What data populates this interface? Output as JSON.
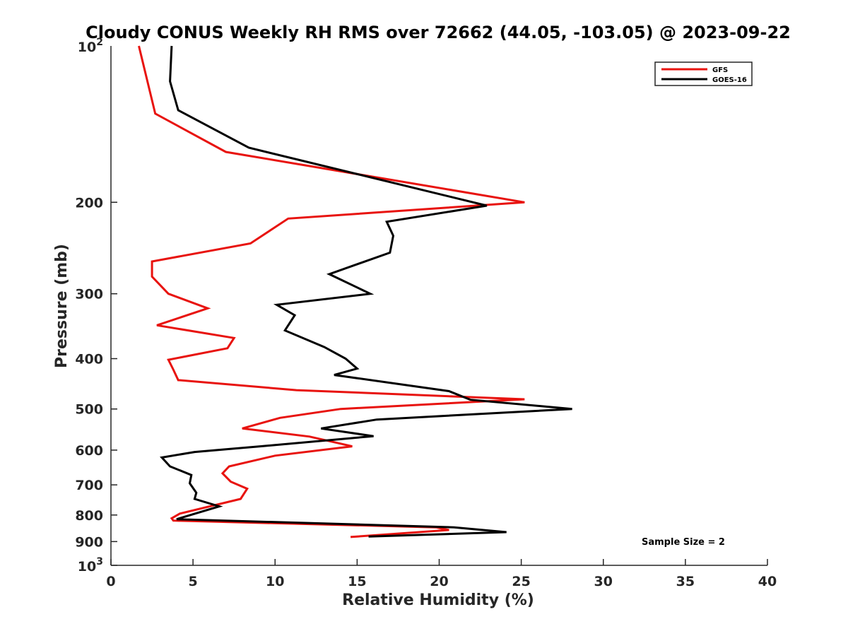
{
  "chart_data": {
    "type": "line",
    "title": "Cloudy CONUS Weekly RH RMS over 72662 (44.05, -103.05) @ 2023-09-22",
    "xlabel": "Relative Humidity (%)",
    "ylabel": "Pressure (mb)",
    "xlim": [
      0,
      40
    ],
    "ylim": [
      100,
      1000
    ],
    "y_scale": "log",
    "y_reversed": true,
    "grid": false,
    "legend_position": "top-right",
    "x_ticks": [
      0,
      5,
      10,
      15,
      20,
      25,
      30,
      35,
      40
    ],
    "x_tick_labels": [
      "0",
      "5",
      "10",
      "15",
      "20",
      "25",
      "30",
      "35",
      "40"
    ],
    "y_ticks": [
      200,
      300,
      400,
      500,
      600,
      700,
      800,
      900
    ],
    "y_tick_labels": [
      "200",
      "300",
      "400",
      "500",
      "600",
      "700",
      "800",
      "900"
    ],
    "y_decade_labels": [
      {
        "value": 100,
        "base": "10",
        "exp": "2"
      },
      {
        "value": 1000,
        "base": "10",
        "exp": "3"
      }
    ],
    "series": [
      {
        "name": "GFS",
        "color": "#e8130f",
        "points": [
          [
            1.7,
            100
          ],
          [
            2.7,
            135
          ],
          [
            7.0,
            160
          ],
          [
            25.2,
            200
          ],
          [
            10.8,
            215
          ],
          [
            8.5,
            240
          ],
          [
            2.5,
            260
          ],
          [
            2.5,
            278
          ],
          [
            3.5,
            300
          ],
          [
            5.9,
            320
          ],
          [
            2.8,
            345
          ],
          [
            7.5,
            365
          ],
          [
            7.1,
            382
          ],
          [
            3.5,
            402
          ],
          [
            3.8,
            420
          ],
          [
            4.1,
            440
          ],
          [
            11.3,
            460
          ],
          [
            25.2,
            479
          ],
          [
            14.0,
            500
          ],
          [
            10.3,
            520
          ],
          [
            8.0,
            545
          ],
          [
            12.1,
            565
          ],
          [
            14.7,
            590
          ],
          [
            10.0,
            615
          ],
          [
            7.2,
            645
          ],
          [
            6.8,
            665
          ],
          [
            7.3,
            690
          ],
          [
            8.3,
            712
          ],
          [
            7.9,
            745
          ],
          [
            4.2,
            795
          ],
          [
            3.7,
            812
          ],
          [
            3.8,
            820
          ],
          [
            19.8,
            845
          ],
          [
            20.6,
            855
          ],
          [
            14.6,
            882
          ]
        ]
      },
      {
        "name": "GOES-16",
        "color": "#000000",
        "points": [
          [
            3.7,
            100
          ],
          [
            3.6,
            117
          ],
          [
            4.1,
            133
          ],
          [
            8.4,
            157
          ],
          [
            22.9,
            203
          ],
          [
            16.8,
            218
          ],
          [
            17.2,
            232
          ],
          [
            17.0,
            250
          ],
          [
            13.3,
            275
          ],
          [
            15.8,
            300
          ],
          [
            10.1,
            315
          ],
          [
            11.2,
            330
          ],
          [
            10.6,
            353
          ],
          [
            13.0,
            380
          ],
          [
            14.3,
            400
          ],
          [
            15.0,
            418
          ],
          [
            13.6,
            430
          ],
          [
            20.6,
            462
          ],
          [
            21.9,
            480
          ],
          [
            28.1,
            500
          ],
          [
            16.2,
            524
          ],
          [
            12.8,
            545
          ],
          [
            16.0,
            564
          ],
          [
            9.1,
            590
          ],
          [
            5.1,
            605
          ],
          [
            3.1,
            620
          ],
          [
            3.6,
            645
          ],
          [
            4.9,
            670
          ],
          [
            4.8,
            695
          ],
          [
            5.2,
            725
          ],
          [
            5.1,
            745
          ],
          [
            6.6,
            770
          ],
          [
            4.0,
            815
          ],
          [
            20.9,
            845
          ],
          [
            24.1,
            863
          ],
          [
            15.7,
            880
          ]
        ]
      }
    ],
    "annotations": [
      "Sample Size = 2"
    ]
  }
}
